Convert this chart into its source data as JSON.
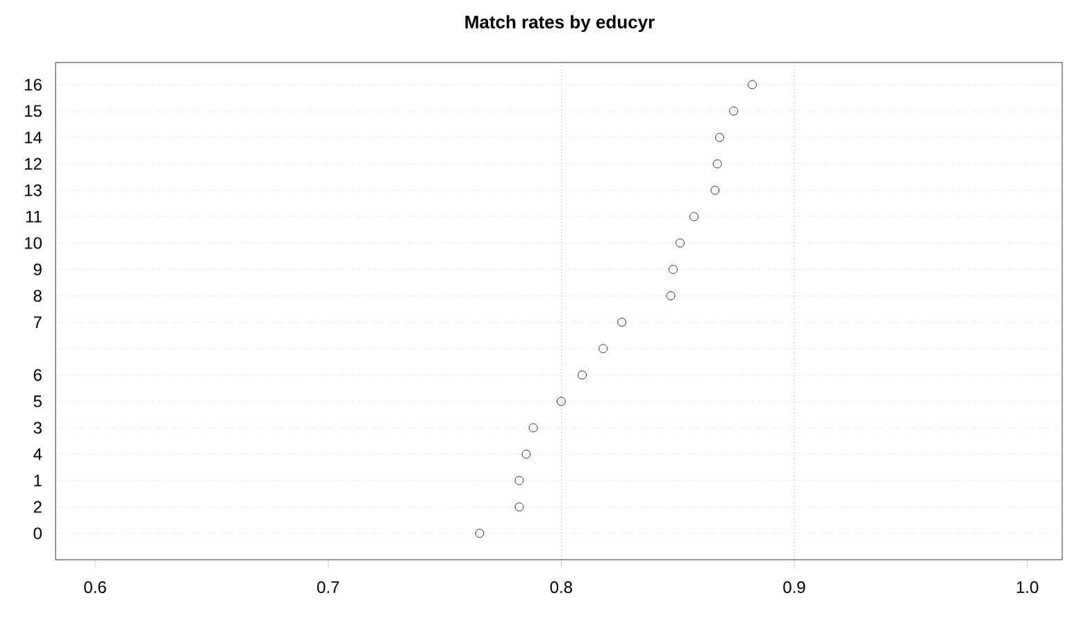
{
  "chart_data": {
    "type": "scatter",
    "title": "Match rates by educyr",
    "orientation": "horizontal",
    "categories": [
      "16",
      "15",
      "14",
      "12",
      "13",
      "11",
      "10",
      "9",
      "8",
      "7",
      null,
      "6",
      "5",
      "3",
      "4",
      "1",
      "2",
      "0"
    ],
    "values": [
      0.882,
      0.874,
      0.868,
      0.867,
      0.866,
      0.857,
      0.851,
      0.848,
      0.847,
      0.826,
      0.818,
      0.809,
      0.8,
      0.788,
      0.785,
      0.782,
      0.782,
      0.765
    ],
    "color": "#000000",
    "marker": "circle",
    "grid": "y",
    "xlim": [
      0.583,
      1.015
    ],
    "xticks": [
      0.6,
      0.7,
      0.8,
      0.9,
      {
        "value": 1,
        "label": "1.0"
      }
    ],
    "ref_lines": [
      {
        "axis": "x",
        "value": 0.8,
        "line_style": "dotted",
        "color": "#555555"
      },
      {
        "axis": "x",
        "value": 0.9,
        "line_style": "dotted",
        "color": "#555555"
      }
    ]
  }
}
